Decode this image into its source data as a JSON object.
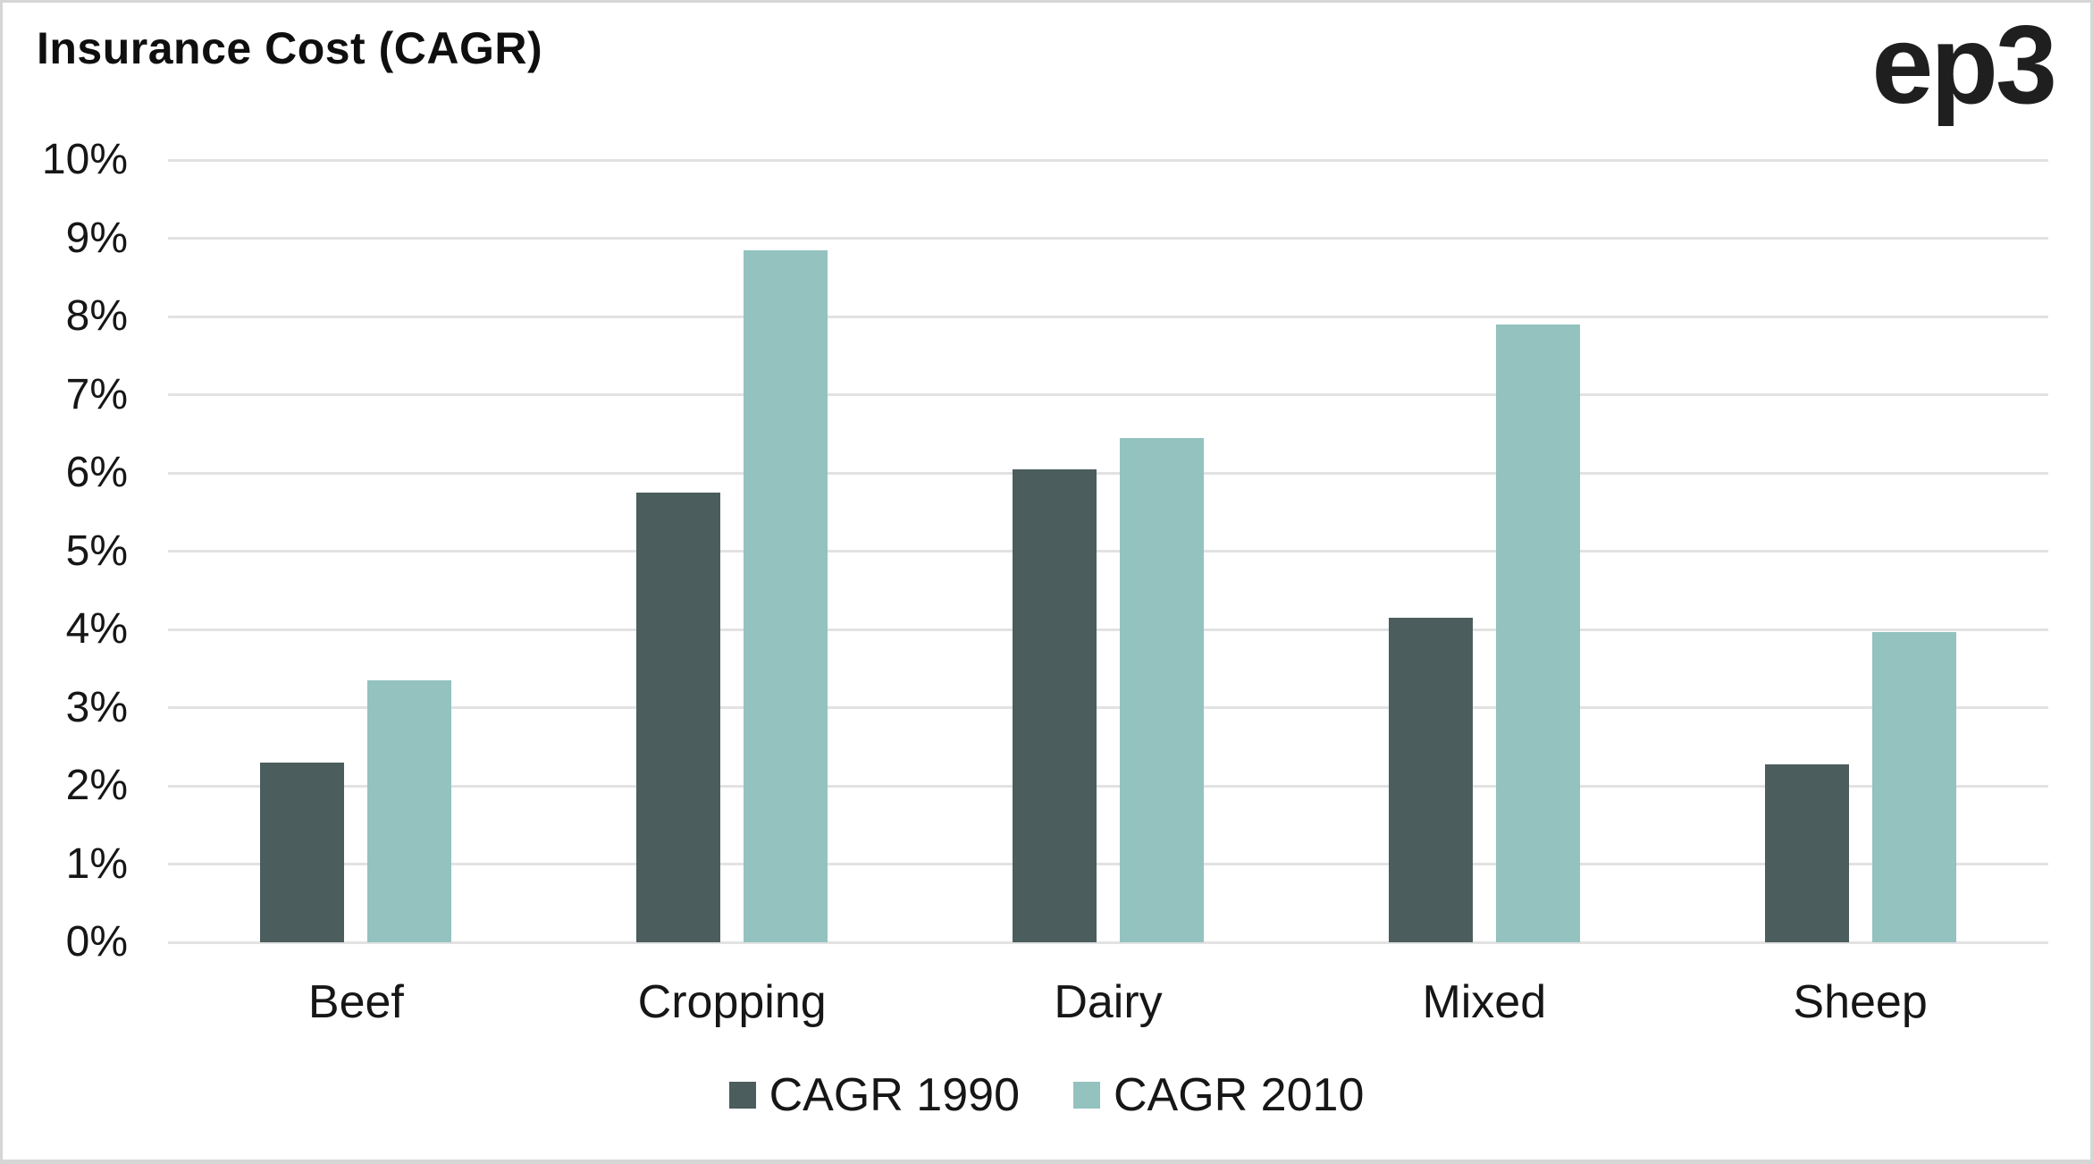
{
  "header": {
    "title": "Insurance Cost (CAGR)",
    "logo": "ep3"
  },
  "colors": {
    "series_1990": "#4b5d5d",
    "series_2010": "#93c2bf",
    "gridline": "#e2e2e2",
    "title_text": "#0f0f0f",
    "axis_text": "#161616",
    "frame_border": "#d6d6d6",
    "background": "#ffffff"
  },
  "chart_data": {
    "type": "bar",
    "title": "Insurance Cost (CAGR)",
    "categories": [
      "Beef",
      "Cropping",
      "Dairy",
      "Mixed",
      "Sheep"
    ],
    "series": [
      {
        "name": "CAGR 1990",
        "color": "#4b5d5d",
        "values": [
          2.3,
          5.75,
          6.05,
          4.15,
          2.28
        ]
      },
      {
        "name": "CAGR 2010",
        "color": "#93c2bf",
        "values": [
          3.35,
          8.85,
          6.45,
          7.9,
          3.97
        ]
      }
    ],
    "xlabel": "",
    "ylabel": "",
    "ylim": [
      0,
      10
    ],
    "ytick_step": 1,
    "yticks": [
      "10%",
      "9%",
      "8%",
      "7%",
      "6%",
      "5%",
      "4%",
      "3%",
      "2%",
      "1%",
      "0%"
    ],
    "grid": true,
    "legend_position": "bottom",
    "value_unit": "percent"
  }
}
